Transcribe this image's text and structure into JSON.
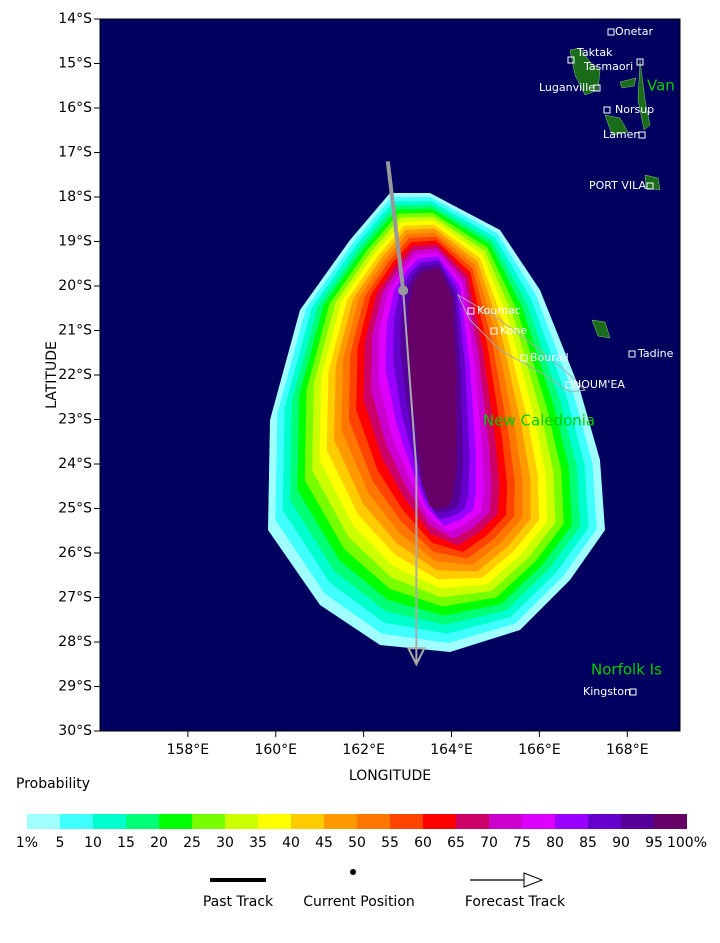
{
  "chart_data": {
    "type": "map",
    "xlabel": "LONGITUDE",
    "ylabel": "LATITUDE",
    "xlim": [
      156,
      169.2
    ],
    "ylim": [
      -30,
      -14
    ],
    "xticks": [
      {
        "value": 158,
        "label": "158°E"
      },
      {
        "value": 160,
        "label": "160°E"
      },
      {
        "value": 162,
        "label": "162°E"
      },
      {
        "value": 164,
        "label": "164°E"
      },
      {
        "value": 166,
        "label": "166°E"
      },
      {
        "value": 168,
        "label": "168°E"
      }
    ],
    "yticks": [
      {
        "value": -14,
        "label": "14°S"
      },
      {
        "value": -15,
        "label": "15°S"
      },
      {
        "value": -16,
        "label": "16°S"
      },
      {
        "value": -17,
        "label": "17°S"
      },
      {
        "value": -18,
        "label": "18°S"
      },
      {
        "value": -19,
        "label": "19°S"
      },
      {
        "value": -20,
        "label": "20°S"
      },
      {
        "value": -21,
        "label": "21°S"
      },
      {
        "value": -22,
        "label": "22°S"
      },
      {
        "value": -23,
        "label": "23°S"
      },
      {
        "value": -24,
        "label": "24°S"
      },
      {
        "value": -25,
        "label": "25°S"
      },
      {
        "value": -26,
        "label": "26°S"
      },
      {
        "value": -27,
        "label": "27°S"
      },
      {
        "value": -28,
        "label": "28°S"
      },
      {
        "value": -29,
        "label": "29°S"
      },
      {
        "value": -30,
        "label": "30°S"
      }
    ],
    "past_track": {
      "name": "Past Track",
      "color": "#999999",
      "x": [
        162.55,
        162.9
      ],
      "y": [
        -17.2,
        -20.1
      ]
    },
    "current_position": {
      "name": "Current Position"
    },
    "forecast_track": {
      "name": "Forecast Track",
      "color": "#aaaaaa",
      "x": [
        162.9,
        163.2,
        163.2
      ],
      "y": [
        -20.1,
        -24.1,
        -28.5
      ]
    },
    "colorbar": {
      "title": "Probability",
      "colors": [
        "#a0ffff",
        "#40ffff",
        "#00ffcc",
        "#00ff77",
        "#00ff00",
        "#77ff00",
        "#ccff00",
        "#ffff00",
        "#ffcc00",
        "#ff9900",
        "#ff7700",
        "#ff4400",
        "#ff0000",
        "#cc0066",
        "#cc00cc",
        "#dd00ff",
        "#9900ff",
        "#6600cc",
        "#550099",
        "#660066"
      ],
      "ticks": [
        {
          "value": 1,
          "label": "1%"
        },
        5,
        10,
        15,
        20,
        25,
        30,
        35,
        40,
        45,
        50,
        55,
        60,
        65,
        70,
        75,
        80,
        85,
        90,
        95,
        {
          "value": 100,
          "label": "100%"
        }
      ]
    },
    "places": [
      "Onetar",
      "Taktak",
      "Tasmaori",
      "Luganville",
      "Norsup",
      "Lamen",
      "PORT VILA",
      "Koumac",
      "Kone",
      "Bourail",
      "NOUM'EA",
      "Tadine",
      "Kingston"
    ],
    "regions": [
      "Van",
      "New Caledonia",
      "Norfolk Is"
    ]
  }
}
